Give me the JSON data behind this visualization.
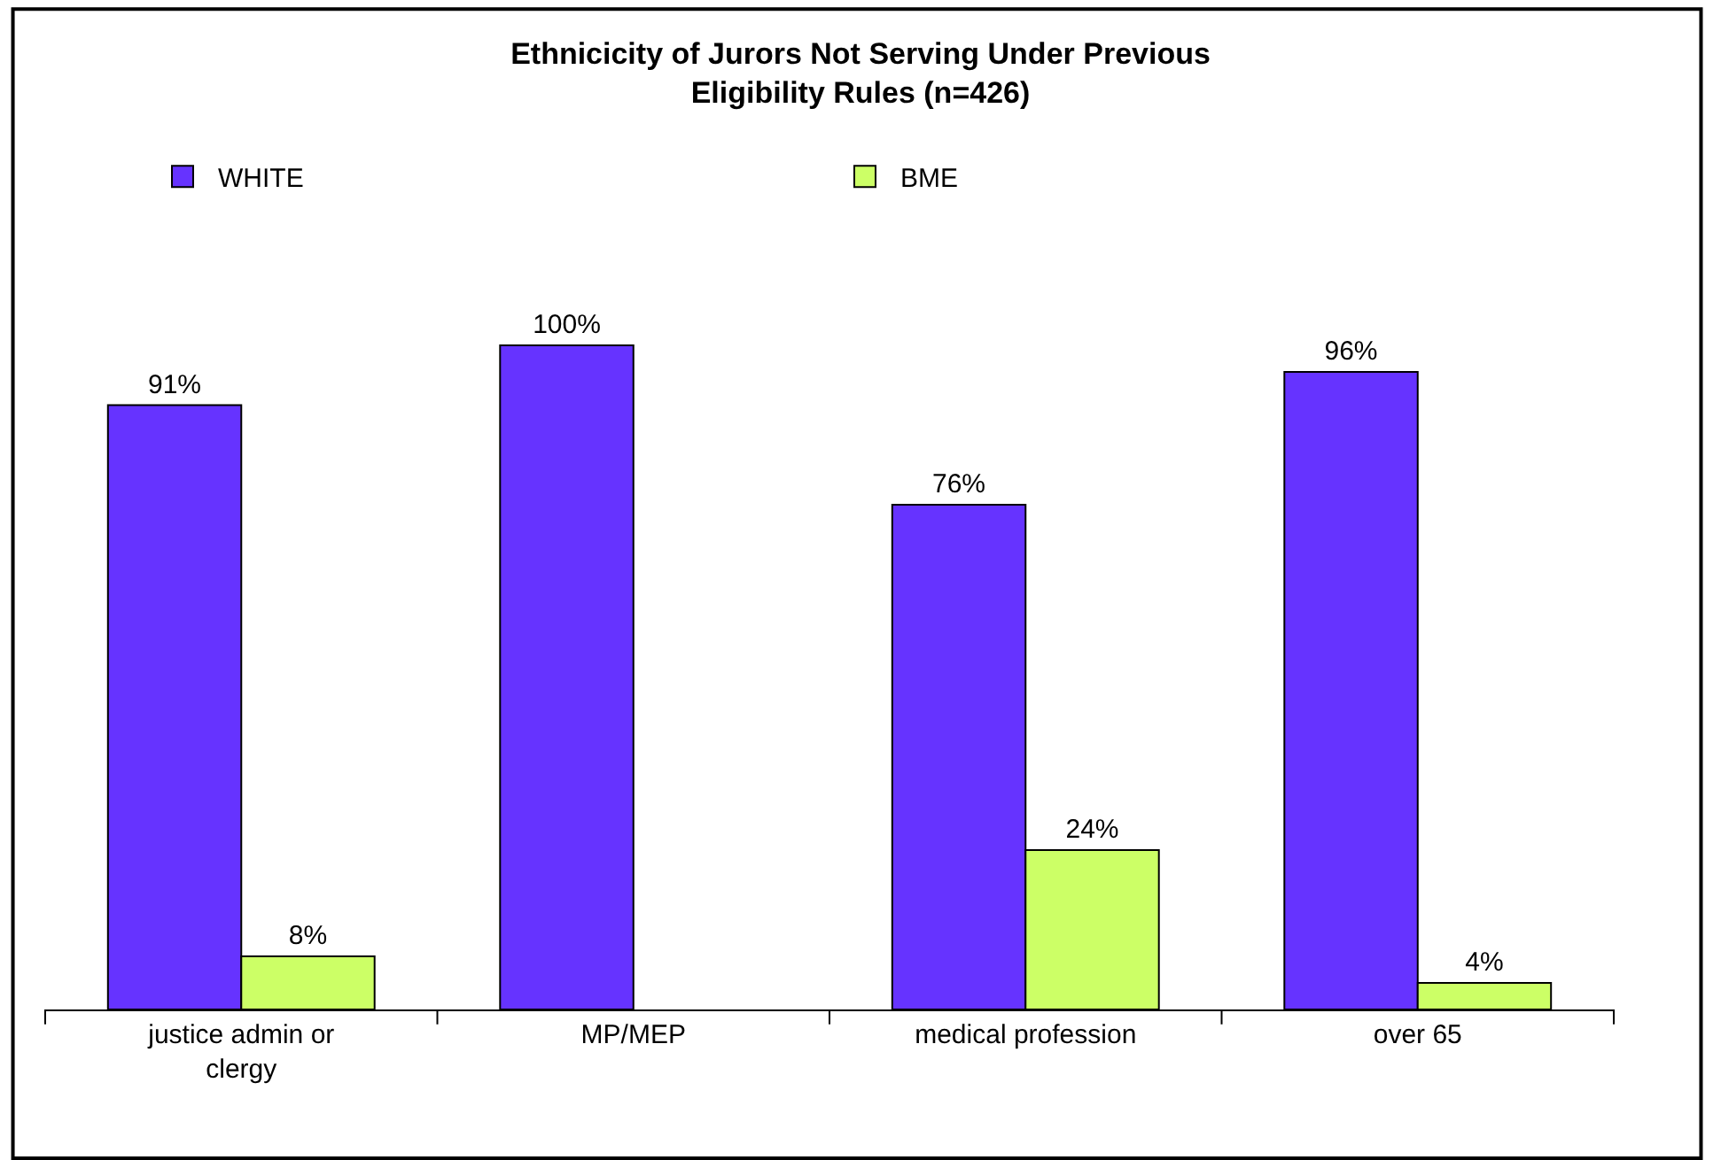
{
  "chart_data": {
    "type": "bar",
    "title": "Ethnicicity of Jurors Not Serving Under Previous Eligibility Rules (n=426)",
    "categories": [
      "justice admin or clergy",
      "MP/MEP",
      "medical profession",
      "over 65"
    ],
    "series": [
      {
        "name": "WHITE",
        "color": "#6633ff",
        "values": [
          91,
          100,
          76,
          96
        ],
        "value_labels": [
          "91%",
          "100%",
          "76%",
          "96%"
        ]
      },
      {
        "name": "BME",
        "color": "#ccff66",
        "values": [
          8,
          null,
          24,
          4
        ],
        "value_labels": [
          "8%",
          null,
          "24%",
          "4%"
        ]
      }
    ],
    "legend": "top"
  }
}
